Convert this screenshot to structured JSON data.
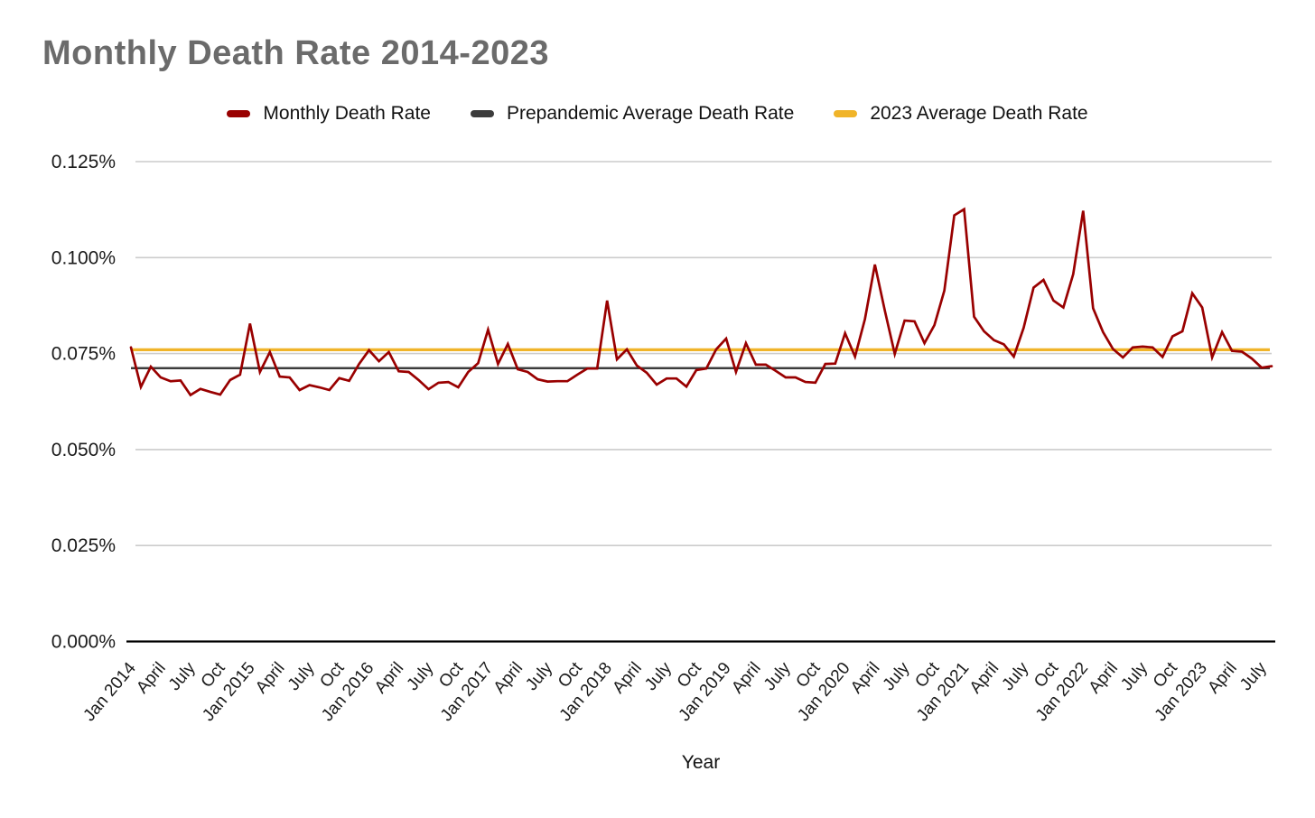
{
  "page": {
    "background": "#ffffff"
  },
  "header": {
    "title": "Monthly Death Rate 2014-2023",
    "title_color": "#6b6b6b"
  },
  "legend": {
    "items": [
      {
        "label": "Monthly Death Rate",
        "color": "#990000"
      },
      {
        "label": "Prepandemic Average Death Rate",
        "color": "#3c3c3c"
      },
      {
        "label": "2023 Average Death Rate",
        "color": "#f0b429"
      }
    ]
  },
  "chart_data": {
    "type": "line",
    "title": "Monthly Death Rate 2014-2023",
    "xlabel": "Year",
    "ylabel": "",
    "units": "percent of population per month",
    "ylim": [
      0,
      0.125
    ],
    "grid": true,
    "legend_position": "top",
    "y_tick_values": [
      0,
      0.025,
      0.05,
      0.075,
      0.1,
      0.125
    ],
    "y_tick_labels": [
      "0.000%",
      "0.025%",
      "0.050%",
      "0.075%",
      "0.100%",
      "0.125%"
    ],
    "x_tick_every_months": 3,
    "x_tick_labels": [
      "Jan 2014",
      "April",
      "July",
      "Oct",
      "Jan 2015",
      "April",
      "July",
      "Oct",
      "Jan 2016",
      "April",
      "July",
      "Oct",
      "Jan 2017",
      "April",
      "July",
      "Oct",
      "Jan 2018",
      "April",
      "July",
      "Oct",
      "Jan 2019",
      "April",
      "July",
      "Oct",
      "Jan 2020",
      "April",
      "July",
      "Oct",
      "Jan 2021",
      "April",
      "July",
      "Oct",
      "Jan 2022",
      "April",
      "July",
      "Oct",
      "Jan 2023",
      "April",
      "July"
    ],
    "months": [
      "2014-01",
      "2014-02",
      "2014-03",
      "2014-04",
      "2014-05",
      "2014-06",
      "2014-07",
      "2014-08",
      "2014-09",
      "2014-10",
      "2014-11",
      "2014-12",
      "2015-01",
      "2015-02",
      "2015-03",
      "2015-04",
      "2015-05",
      "2015-06",
      "2015-07",
      "2015-08",
      "2015-09",
      "2015-10",
      "2015-11",
      "2015-12",
      "2016-01",
      "2016-02",
      "2016-03",
      "2016-04",
      "2016-05",
      "2016-06",
      "2016-07",
      "2016-08",
      "2016-09",
      "2016-10",
      "2016-11",
      "2016-12",
      "2017-01",
      "2017-02",
      "2017-03",
      "2017-04",
      "2017-05",
      "2017-06",
      "2017-07",
      "2017-08",
      "2017-09",
      "2017-10",
      "2017-11",
      "2017-12",
      "2018-01",
      "2018-02",
      "2018-03",
      "2018-04",
      "2018-05",
      "2018-06",
      "2018-07",
      "2018-08",
      "2018-09",
      "2018-10",
      "2018-11",
      "2018-12",
      "2019-01",
      "2019-02",
      "2019-03",
      "2019-04",
      "2019-05",
      "2019-06",
      "2019-07",
      "2019-08",
      "2019-09",
      "2019-10",
      "2019-11",
      "2019-12",
      "2020-01",
      "2020-02",
      "2020-03",
      "2020-04",
      "2020-05",
      "2020-06",
      "2020-07",
      "2020-08",
      "2020-09",
      "2020-10",
      "2020-11",
      "2020-12",
      "2021-01",
      "2021-02",
      "2021-03",
      "2021-04",
      "2021-05",
      "2021-06",
      "2021-07",
      "2021-08",
      "2021-09",
      "2021-10",
      "2021-11",
      "2021-12",
      "2022-01",
      "2022-02",
      "2022-03",
      "2022-04",
      "2022-05",
      "2022-06",
      "2022-07",
      "2022-08",
      "2022-09",
      "2022-10",
      "2022-11",
      "2022-12",
      "2023-01",
      "2023-02",
      "2023-03",
      "2023-04",
      "2023-05",
      "2023-06",
      "2023-07",
      "2023-08"
    ],
    "series": [
      {
        "name": "Monthly Death Rate",
        "color": "#990000",
        "values": [
          0.0766,
          0.0663,
          0.0716,
          0.0688,
          0.0678,
          0.068,
          0.0642,
          0.0658,
          0.065,
          0.0643,
          0.0681,
          0.0695,
          0.0828,
          0.0702,
          0.0754,
          0.069,
          0.0688,
          0.0655,
          0.0668,
          0.0662,
          0.0655,
          0.0686,
          0.0679,
          0.0723,
          0.0759,
          0.073,
          0.0754,
          0.0704,
          0.0702,
          0.0681,
          0.0657,
          0.0674,
          0.0676,
          0.0662,
          0.0702,
          0.0725,
          0.0812,
          0.0723,
          0.0775,
          0.0709,
          0.0702,
          0.0683,
          0.0677,
          0.0678,
          0.0678,
          0.0695,
          0.0711,
          0.0711,
          0.0888,
          0.0735,
          0.0761,
          0.0719,
          0.07,
          0.0669,
          0.0685,
          0.0685,
          0.0664,
          0.0707,
          0.0711,
          0.0761,
          0.0789,
          0.0702,
          0.0777,
          0.0721,
          0.0721,
          0.0705,
          0.0688,
          0.0688,
          0.0676,
          0.0674,
          0.0723,
          0.0724,
          0.0803,
          0.0742,
          0.084,
          0.0982,
          0.0862,
          0.0749,
          0.0836,
          0.0834,
          0.0777,
          0.0824,
          0.0914,
          0.111,
          0.1126,
          0.0846,
          0.0808,
          0.0785,
          0.0774,
          0.0742,
          0.0817,
          0.0922,
          0.0942,
          0.0888,
          0.087,
          0.0957,
          0.1122,
          0.0868,
          0.0806,
          0.0762,
          0.074,
          0.0766,
          0.0768,
          0.0766,
          0.0741,
          0.0795,
          0.0808,
          0.0907,
          0.087,
          0.074,
          0.0806,
          0.0757,
          0.0755,
          0.0737,
          0.0713,
          0.0717
        ]
      },
      {
        "name": "Prepandemic Average Death Rate",
        "type": "reference-line",
        "color": "#3c3c3c",
        "value": 0.0712
      },
      {
        "name": "2023 Average Death Rate",
        "type": "reference-line",
        "color": "#f0b429",
        "value": 0.076
      }
    ]
  },
  "style": {
    "gridline_color": "#cccccc",
    "axis_color": "#000000",
    "tick_label_color": "#1a1a1a"
  }
}
